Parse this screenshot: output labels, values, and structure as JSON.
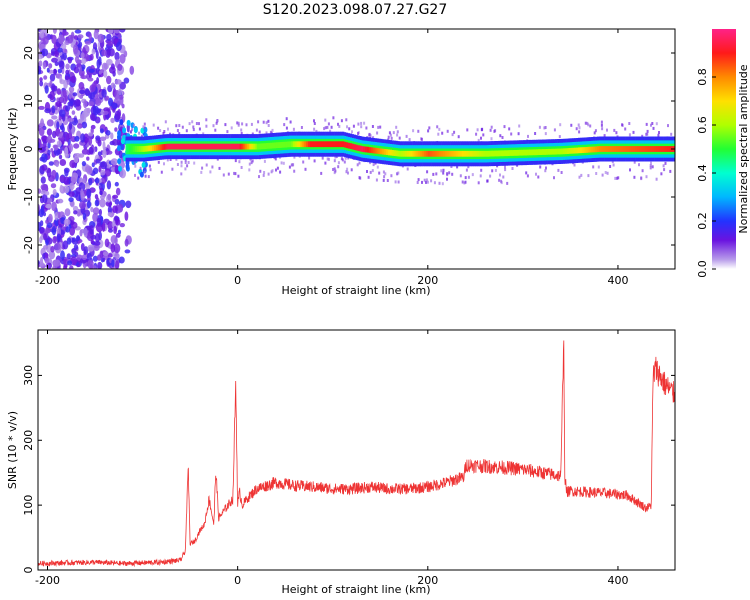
{
  "title": "S120.2023.098.07.27.G27",
  "colors": {
    "snr_line": "#ee3333",
    "axis": "#000000",
    "background": "#ffffff"
  },
  "chart_data": [
    {
      "type": "heatmap",
      "xlabel": "Height of straight line (km)",
      "ylabel": "Frequency (Hz)",
      "xlim": [
        -210,
        460
      ],
      "ylim": [
        -25,
        25
      ],
      "xticks": [
        -200,
        0,
        200,
        400
      ],
      "yticks": [
        -20,
        -10,
        0,
        10,
        20
      ],
      "colorbar": {
        "label": "Normalized spectral amplitude",
        "range": [
          0,
          1
        ],
        "ticks": [
          0.0,
          0.2,
          0.4,
          0.6,
          0.8
        ],
        "colormap": "rainbow (purple-blue-cyan-green-yellow-orange-red-magenta)"
      },
      "noise_region_x": [
        -210,
        -120
      ],
      "ridge": [
        {
          "x": -120,
          "freq": 0,
          "amp": 0.45
        },
        {
          "x": -100,
          "freq": 0,
          "amp": 0.6
        },
        {
          "x": -75,
          "freq": 0.5,
          "amp": 0.95
        },
        {
          "x": 0,
          "freq": 0.5,
          "amp": 0.95
        },
        {
          "x": 20,
          "freq": 0.5,
          "amp": 0.55
        },
        {
          "x": 55,
          "freq": 1,
          "amp": 0.55
        },
        {
          "x": 75,
          "freq": 1,
          "amp": 0.9
        },
        {
          "x": 110,
          "freq": 1,
          "amp": 0.9
        },
        {
          "x": 130,
          "freq": 0,
          "amp": 0.95
        },
        {
          "x": 170,
          "freq": -1,
          "amp": 0.6
        },
        {
          "x": 200,
          "freq": -1,
          "amp": 0.85
        },
        {
          "x": 260,
          "freq": -1,
          "amp": 0.6
        },
        {
          "x": 340,
          "freq": -0.5,
          "amp": 0.6
        },
        {
          "x": 380,
          "freq": 0,
          "amp": 0.8
        },
        {
          "x": 460,
          "freq": 0,
          "amp": 0.9
        }
      ]
    },
    {
      "type": "line",
      "xlabel": "Height of straight line (km)",
      "ylabel": "SNR (10 * v/v)",
      "xlim": [
        -210,
        460
      ],
      "ylim": [
        0,
        370
      ],
      "xticks": [
        -200,
        0,
        200,
        400
      ],
      "yticks": [
        0,
        100,
        200,
        300
      ],
      "series": [
        {
          "x": [
            -210,
            -180,
            -150,
            -120,
            -100,
            -80,
            -60,
            -55,
            -52,
            -50,
            -45,
            -40,
            -35,
            -30,
            -25,
            -23,
            -20,
            -15,
            -10,
            -5,
            -2,
            0,
            2,
            5,
            10,
            20,
            30,
            40,
            60,
            80,
            100,
            120,
            140,
            160,
            180,
            200,
            220,
            230,
            238,
            240,
            260,
            280,
            300,
            320,
            340,
            343,
            344,
            346,
            350,
            370,
            390,
            410,
            430,
            435,
            437,
            440,
            450,
            460
          ],
          "y": [
            10,
            11,
            12,
            10,
            11,
            12,
            15,
            30,
            160,
            40,
            45,
            60,
            70,
            110,
            70,
            155,
            80,
            90,
            100,
            110,
            290,
            100,
            120,
            100,
            110,
            125,
            130,
            135,
            130,
            128,
            125,
            125,
            128,
            125,
            125,
            128,
            135,
            140,
            143,
            162,
            160,
            158,
            155,
            150,
            145,
            370,
            145,
            120,
            122,
            120,
            118,
            115,
            95,
            100,
            300,
            310,
            285,
            270
          ]
        }
      ]
    }
  ]
}
